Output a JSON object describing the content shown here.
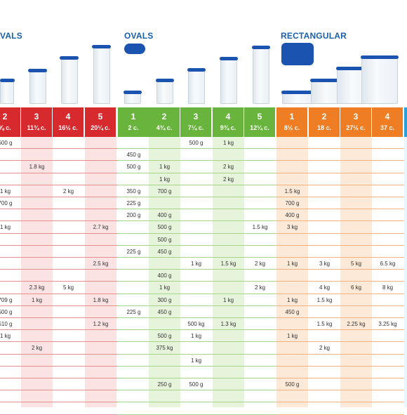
{
  "sections": {
    "ovals_cut": "VALS",
    "ovals": "OVALS",
    "rectangular": "RECTANGULAR"
  },
  "colors": {
    "red": "#d72a2f",
    "green": "#69b43c",
    "orange": "#ee7d23",
    "blue": "#2a9fd8",
    "lid": "#1a53b0",
    "title": "#1a5fa8"
  },
  "columns": [
    {
      "num": "2",
      "cap": "⅞ c."
    },
    {
      "num": "3",
      "cap": "11¾ c."
    },
    {
      "num": "4",
      "cap": "16½ c."
    },
    {
      "num": "5",
      "cap": "20¼ c."
    },
    {
      "num": "1",
      "cap": "2 c."
    },
    {
      "num": "2",
      "cap": "4¾ c."
    },
    {
      "num": "3",
      "cap": "7¼ c."
    },
    {
      "num": "4",
      "cap": "9¾ c."
    },
    {
      "num": "5",
      "cap": "12¼ c."
    },
    {
      "num": "1",
      "cap": "8½ c."
    },
    {
      "num": "2",
      "cap": "18 c."
    },
    {
      "num": "3",
      "cap": "27½ c."
    },
    {
      "num": "4",
      "cap": "37 c."
    }
  ],
  "rows": [
    [
      "500 g",
      "",
      "",
      "",
      "",
      "",
      "500 g",
      "1 kg",
      "",
      "",
      "",
      "",
      ""
    ],
    [
      "",
      "",
      "",
      "",
      "450 g",
      "",
      "",
      "",
      "",
      "",
      "",
      "",
      ""
    ],
    [
      "",
      "1.8 kg",
      "",
      "",
      "500 g",
      "1 kg",
      "",
      "2 kg",
      "",
      "",
      "",
      "",
      ""
    ],
    [
      "",
      "",
      "",
      "",
      "",
      "1 kg",
      "",
      "2 kg",
      "",
      "",
      "",
      "",
      ""
    ],
    [
      "1 kg",
      "",
      "2 kg",
      "",
      "350 g",
      "700 g",
      "",
      "",
      "",
      "1.5 kg",
      "",
      "",
      ""
    ],
    [
      "700 g",
      "",
      "",
      "",
      "225 g",
      "",
      "",
      "",
      "",
      "700 g",
      "",
      "",
      ""
    ],
    [
      "",
      "",
      "",
      "",
      "200 g",
      "400 g",
      "",
      "",
      "",
      "400 g",
      "",
      "",
      ""
    ],
    [
      "1 kg",
      "",
      "",
      "2.7 kg",
      "",
      "500 g",
      "",
      "",
      "1.5 kg",
      "3 kg",
      "",
      "",
      ""
    ],
    [
      "",
      "",
      "",
      "",
      "",
      "500 g",
      "",
      "",
      "",
      "",
      "",
      "",
      ""
    ],
    [
      "",
      "",
      "",
      "",
      "225 g",
      "450 g",
      "",
      "",
      "",
      "",
      "",
      "",
      ""
    ],
    [
      "",
      "",
      "",
      "2.5 kg",
      "",
      "",
      "1 kg",
      "1.5 kg",
      "2 kg",
      "1 kg",
      "3 kg",
      "5 kg",
      "6.5 kg"
    ],
    [
      "",
      "",
      "",
      "",
      "",
      "400 g",
      "",
      "",
      "",
      "",
      "",
      "",
      ""
    ],
    [
      "",
      "2.3 kg",
      "5 kg",
      "",
      "",
      "1 kg",
      "",
      "",
      "2 kg",
      "",
      "4 kg",
      "6 kg",
      "8 kg"
    ],
    [
      "709 g",
      "1 kg",
      "",
      "1.8 kg",
      "",
      "300 g",
      "",
      "1 kg",
      "",
      "1 kg",
      "1.5 kg",
      "",
      ""
    ],
    [
      "500 g",
      "",
      "",
      "",
      "225 g",
      "450 g",
      "",
      "",
      "",
      "450 g",
      "",
      "",
      ""
    ],
    [
      "510 g",
      "",
      "",
      "1.2 kg",
      "",
      "",
      "500 kg",
      "1.3 kg",
      "",
      "",
      "1.5 kg",
      "2.25 kg",
      "3.25 kg"
    ],
    [
      "1 kg",
      "",
      "",
      "",
      "",
      "500 g",
      "1 kg",
      "",
      "",
      "1 kg",
      "",
      "",
      ""
    ],
    [
      "",
      "2 kg",
      "",
      "",
      "",
      "375 kg",
      "",
      "",
      "",
      "",
      "2 kg",
      "",
      ""
    ],
    [
      "",
      "",
      "",
      "",
      "",
      "",
      "1 kg",
      "",
      "",
      "",
      "",
      "",
      ""
    ],
    [
      "",
      "",
      "",
      "",
      "",
      "",
      "",
      "",
      "",
      "",
      "",
      "",
      ""
    ],
    [
      "",
      "",
      "",
      "",
      "",
      "250 g",
      "500 g",
      "",
      "",
      "500 g",
      "",
      "",
      ""
    ],
    [
      "",
      "",
      "",
      "",
      "",
      "",
      "",
      "",
      "",
      "",
      "",
      "",
      ""
    ]
  ]
}
